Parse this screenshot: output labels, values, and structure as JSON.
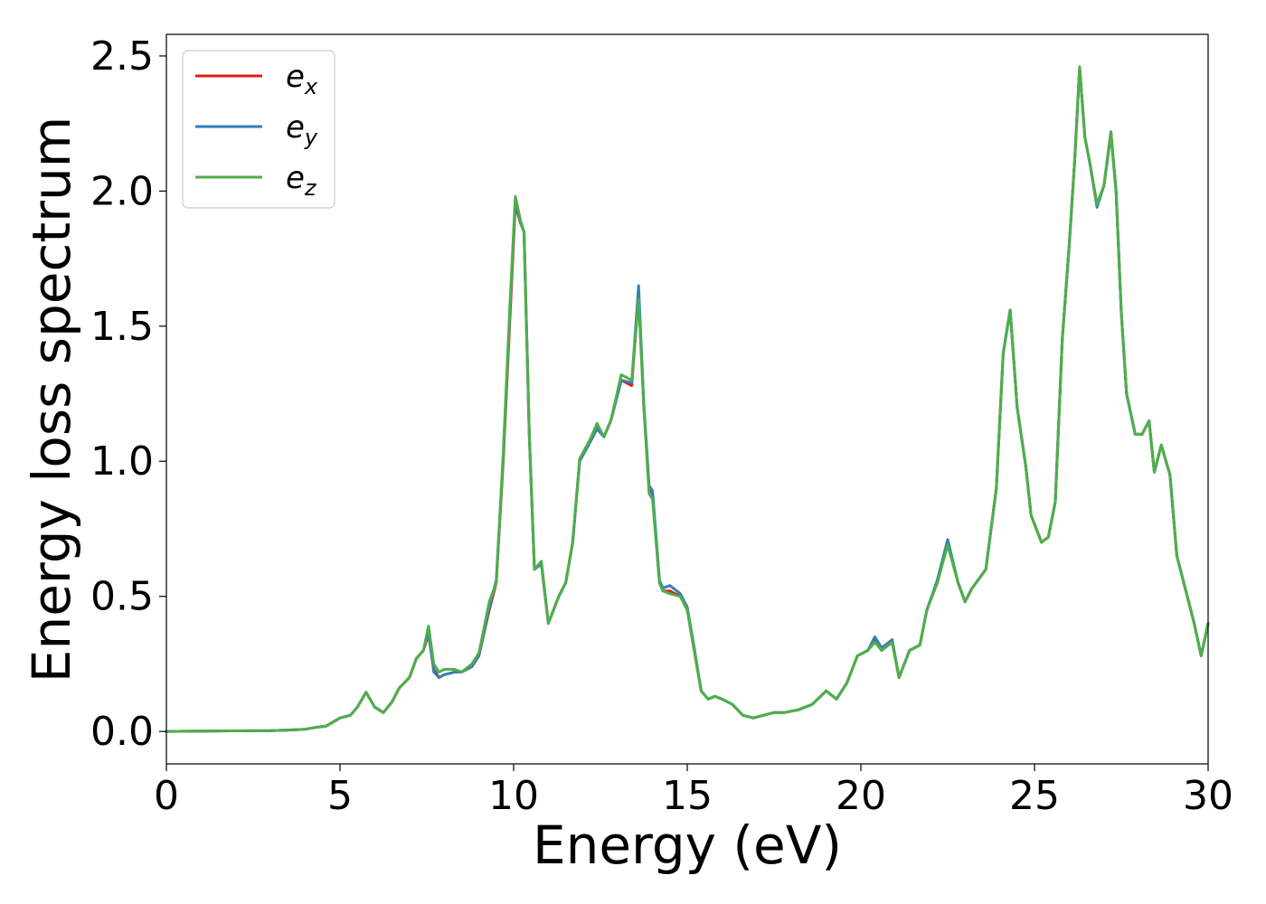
{
  "chart_data": {
    "type": "line",
    "xlabel": "Energy (eV)",
    "ylabel": "Energy loss spectrum",
    "xlim": [
      0,
      30
    ],
    "ylim": [
      -0.12,
      2.58
    ],
    "xticks": [
      0,
      5,
      10,
      15,
      20,
      25,
      30
    ],
    "xtick_labels": [
      "0",
      "5",
      "10",
      "15",
      "20",
      "25",
      "30"
    ],
    "yticks": [
      0.0,
      0.5,
      1.0,
      1.5,
      2.0,
      2.5
    ],
    "ytick_labels": [
      "0.0",
      "0.5",
      "1.0",
      "1.5",
      "2.0",
      "2.5"
    ],
    "grid": false,
    "legend_position": "top-left",
    "x": [
      0,
      1,
      2,
      3,
      3.5,
      4,
      4.3,
      4.6,
      5.0,
      5.3,
      5.5,
      5.75,
      6.0,
      6.25,
      6.5,
      6.7,
      7.0,
      7.2,
      7.4,
      7.55,
      7.7,
      7.85,
      8.0,
      8.3,
      8.5,
      8.8,
      9.0,
      9.3,
      9.5,
      9.7,
      9.9,
      10.05,
      10.2,
      10.3,
      10.45,
      10.6,
      10.8,
      11.0,
      11.3,
      11.5,
      11.7,
      11.9,
      12.2,
      12.4,
      12.6,
      12.8,
      13.1,
      13.4,
      13.6,
      13.75,
      13.9,
      14.0,
      14.2,
      14.3,
      14.5,
      14.8,
      15.0,
      15.2,
      15.4,
      15.6,
      15.8,
      16.0,
      16.3,
      16.6,
      16.9,
      17.2,
      17.5,
      17.8,
      18.2,
      18.6,
      19.0,
      19.3,
      19.6,
      19.9,
      20.2,
      20.4,
      20.6,
      20.9,
      21.1,
      21.4,
      21.7,
      21.9,
      22.2,
      22.5,
      22.8,
      23.0,
      23.2,
      23.6,
      23.9,
      24.1,
      24.3,
      24.5,
      24.75,
      24.9,
      25.2,
      25.4,
      25.6,
      25.8,
      26.0,
      26.15,
      26.3,
      26.45,
      26.6,
      26.8,
      27.0,
      27.2,
      27.35,
      27.5,
      27.65,
      27.9,
      28.1,
      28.3,
      28.45,
      28.65,
      28.9,
      29.1,
      29.3,
      29.6,
      29.8,
      30.0
    ],
    "series": [
      {
        "name": "e_x",
        "color": "#e41a1c",
        "values": [
          0,
          0.001,
          0.002,
          0.003,
          0.005,
          0.008,
          0.015,
          0.02,
          0.05,
          0.06,
          0.09,
          0.145,
          0.09,
          0.07,
          0.11,
          0.16,
          0.2,
          0.27,
          0.3,
          0.36,
          0.23,
          0.2,
          0.21,
          0.22,
          0.22,
          0.24,
          0.28,
          0.45,
          0.55,
          1.0,
          1.55,
          1.95,
          1.88,
          1.85,
          1.1,
          0.6,
          0.62,
          0.4,
          0.5,
          0.55,
          0.7,
          1.0,
          1.08,
          1.13,
          1.09,
          1.15,
          1.3,
          1.28,
          1.62,
          1.2,
          0.9,
          0.88,
          0.55,
          0.52,
          0.52,
          0.5,
          0.45,
          0.3,
          0.15,
          0.12,
          0.13,
          0.12,
          0.1,
          0.06,
          0.05,
          0.06,
          0.07,
          0.07,
          0.08,
          0.1,
          0.15,
          0.12,
          0.18,
          0.28,
          0.3,
          0.34,
          0.3,
          0.33,
          0.2,
          0.3,
          0.32,
          0.45,
          0.55,
          0.7,
          0.55,
          0.48,
          0.53,
          0.6,
          0.9,
          1.4,
          1.56,
          1.2,
          0.98,
          0.8,
          0.7,
          0.72,
          0.85,
          1.45,
          1.8,
          2.1,
          2.46,
          2.2,
          2.1,
          1.95,
          2.02,
          2.22,
          2.0,
          1.55,
          1.25,
          1.1,
          1.1,
          1.15,
          0.96,
          1.06,
          0.95,
          0.65,
          0.55,
          0.4,
          0.28,
          0.4
        ]
      },
      {
        "name": "e_y",
        "color": "#377eb8",
        "values": [
          0,
          0.001,
          0.002,
          0.003,
          0.005,
          0.008,
          0.015,
          0.02,
          0.05,
          0.06,
          0.09,
          0.145,
          0.09,
          0.07,
          0.11,
          0.16,
          0.2,
          0.27,
          0.3,
          0.37,
          0.22,
          0.2,
          0.21,
          0.22,
          0.22,
          0.24,
          0.28,
          0.46,
          0.56,
          1.02,
          1.58,
          1.97,
          1.88,
          1.85,
          1.1,
          0.6,
          0.62,
          0.4,
          0.5,
          0.55,
          0.7,
          1.0,
          1.07,
          1.12,
          1.09,
          1.15,
          1.3,
          1.29,
          1.65,
          1.21,
          0.91,
          0.89,
          0.56,
          0.53,
          0.54,
          0.51,
          0.46,
          0.31,
          0.15,
          0.12,
          0.13,
          0.12,
          0.1,
          0.06,
          0.05,
          0.06,
          0.07,
          0.07,
          0.08,
          0.1,
          0.15,
          0.12,
          0.18,
          0.28,
          0.3,
          0.35,
          0.31,
          0.34,
          0.2,
          0.3,
          0.32,
          0.45,
          0.56,
          0.71,
          0.55,
          0.48,
          0.53,
          0.6,
          0.9,
          1.4,
          1.56,
          1.2,
          0.98,
          0.8,
          0.7,
          0.72,
          0.85,
          1.45,
          1.8,
          2.1,
          2.45,
          2.2,
          2.1,
          1.94,
          2.02,
          2.21,
          2.0,
          1.55,
          1.25,
          1.1,
          1.1,
          1.15,
          0.96,
          1.06,
          0.95,
          0.65,
          0.55,
          0.4,
          0.28,
          0.4
        ]
      },
      {
        "name": "e_z",
        "color": "#4daf4a",
        "values": [
          0,
          0.001,
          0.002,
          0.003,
          0.005,
          0.008,
          0.015,
          0.02,
          0.05,
          0.06,
          0.09,
          0.145,
          0.09,
          0.07,
          0.11,
          0.16,
          0.2,
          0.27,
          0.3,
          0.39,
          0.25,
          0.22,
          0.23,
          0.23,
          0.22,
          0.25,
          0.29,
          0.48,
          0.55,
          1.03,
          1.6,
          1.98,
          1.89,
          1.85,
          1.1,
          0.6,
          0.63,
          0.4,
          0.5,
          0.55,
          0.7,
          1.01,
          1.08,
          1.14,
          1.09,
          1.15,
          1.32,
          1.3,
          1.6,
          1.2,
          0.88,
          0.86,
          0.55,
          0.52,
          0.51,
          0.5,
          0.45,
          0.3,
          0.15,
          0.12,
          0.13,
          0.12,
          0.1,
          0.06,
          0.05,
          0.06,
          0.07,
          0.07,
          0.08,
          0.1,
          0.15,
          0.12,
          0.18,
          0.28,
          0.3,
          0.33,
          0.3,
          0.33,
          0.2,
          0.3,
          0.32,
          0.45,
          0.55,
          0.69,
          0.55,
          0.48,
          0.53,
          0.6,
          0.9,
          1.4,
          1.56,
          1.2,
          0.98,
          0.8,
          0.7,
          0.72,
          0.85,
          1.45,
          1.8,
          2.1,
          2.46,
          2.2,
          2.1,
          1.95,
          2.02,
          2.22,
          2.0,
          1.55,
          1.25,
          1.1,
          1.1,
          1.15,
          0.96,
          1.06,
          0.95,
          0.65,
          0.55,
          0.4,
          0.28,
          0.4
        ]
      }
    ]
  }
}
